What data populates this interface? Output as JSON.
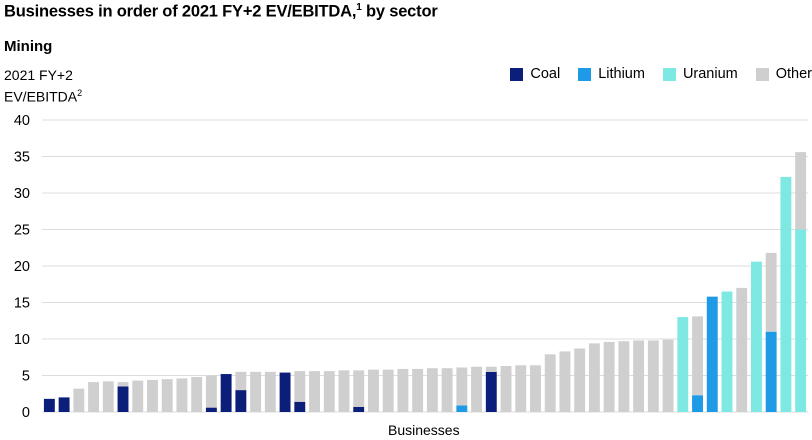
{
  "header": {
    "title": "Businesses in order of 2021 FY+2 EV/EBITDA,",
    "title_sup": "1",
    "title_suffix": " by sector",
    "subtitle": "Mining",
    "ylabel_line1": "2021 FY+2",
    "ylabel_line2": "EV/EBITDA",
    "ylabel_sup": "2"
  },
  "legend": [
    {
      "label": "Coal",
      "color": "#0b1f7a"
    },
    {
      "label": "Lithium",
      "color": "#1f9ae6"
    },
    {
      "label": "Uranium",
      "color": "#7ee8e3"
    },
    {
      "label": "Other",
      "color": "#cfcfcf"
    }
  ],
  "chart_data": {
    "type": "bar",
    "title": "Businesses in order of 2021 FY+2 EV/EBITDA, by sector",
    "subtitle": "Mining",
    "xlabel": "Businesses",
    "ylabel": "2021 FY+2 EV/EBITDA",
    "ylim": [
      0,
      40
    ],
    "yticks": [
      0,
      5,
      10,
      15,
      20,
      25,
      30,
      35,
      40
    ],
    "grid": true,
    "legend_position": "top-right",
    "stacked": true,
    "colors": {
      "Coal": "#0b1f7a",
      "Lithium": "#1f9ae6",
      "Uranium": "#7ee8e3",
      "Other": "#cfcfcf"
    },
    "bars": [
      {
        "segments": [
          {
            "sector": "Coal",
            "value": 1.8
          }
        ]
      },
      {
        "segments": [
          {
            "sector": "Coal",
            "value": 2.0
          }
        ]
      },
      {
        "segments": [
          {
            "sector": "Other",
            "value": 3.2
          }
        ]
      },
      {
        "segments": [
          {
            "sector": "Other",
            "value": 4.1
          }
        ]
      },
      {
        "segments": [
          {
            "sector": "Other",
            "value": 4.2
          }
        ]
      },
      {
        "segments": [
          {
            "sector": "Coal",
            "value": 3.5
          },
          {
            "sector": "Other",
            "value": 0.6
          }
        ]
      },
      {
        "segments": [
          {
            "sector": "Other",
            "value": 4.3
          }
        ]
      },
      {
        "segments": [
          {
            "sector": "Other",
            "value": 4.4
          }
        ]
      },
      {
        "segments": [
          {
            "sector": "Other",
            "value": 4.5
          }
        ]
      },
      {
        "segments": [
          {
            "sector": "Other",
            "value": 4.6
          }
        ]
      },
      {
        "segments": [
          {
            "sector": "Other",
            "value": 4.8
          }
        ]
      },
      {
        "segments": [
          {
            "sector": "Coal",
            "value": 0.6
          },
          {
            "sector": "Other",
            "value": 4.4
          }
        ]
      },
      {
        "segments": [
          {
            "sector": "Coal",
            "value": 5.2
          }
        ]
      },
      {
        "segments": [
          {
            "sector": "Coal",
            "value": 3.0
          },
          {
            "sector": "Other",
            "value": 2.5
          }
        ]
      },
      {
        "segments": [
          {
            "sector": "Other",
            "value": 5.5
          }
        ]
      },
      {
        "segments": [
          {
            "sector": "Other",
            "value": 5.5
          }
        ]
      },
      {
        "segments": [
          {
            "sector": "Coal",
            "value": 5.4
          }
        ]
      },
      {
        "segments": [
          {
            "sector": "Coal",
            "value": 1.4
          },
          {
            "sector": "Other",
            "value": 4.2
          }
        ]
      },
      {
        "segments": [
          {
            "sector": "Other",
            "value": 5.6
          }
        ]
      },
      {
        "segments": [
          {
            "sector": "Other",
            "value": 5.6
          }
        ]
      },
      {
        "segments": [
          {
            "sector": "Other",
            "value": 5.7
          }
        ]
      },
      {
        "segments": [
          {
            "sector": "Coal",
            "value": 0.7
          },
          {
            "sector": "Other",
            "value": 5.0
          }
        ]
      },
      {
        "segments": [
          {
            "sector": "Other",
            "value": 5.8
          }
        ]
      },
      {
        "segments": [
          {
            "sector": "Other",
            "value": 5.8
          }
        ]
      },
      {
        "segments": [
          {
            "sector": "Other",
            "value": 5.9
          }
        ]
      },
      {
        "segments": [
          {
            "sector": "Other",
            "value": 5.9
          }
        ]
      },
      {
        "segments": [
          {
            "sector": "Other",
            "value": 6.0
          }
        ]
      },
      {
        "segments": [
          {
            "sector": "Other",
            "value": 6.0
          }
        ]
      },
      {
        "segments": [
          {
            "sector": "Lithium",
            "value": 0.9
          },
          {
            "sector": "Other",
            "value": 5.2
          }
        ]
      },
      {
        "segments": [
          {
            "sector": "Other",
            "value": 6.2
          }
        ]
      },
      {
        "segments": [
          {
            "sector": "Coal",
            "value": 5.5
          },
          {
            "sector": "Other",
            "value": 0.7
          }
        ]
      },
      {
        "segments": [
          {
            "sector": "Other",
            "value": 6.3
          }
        ]
      },
      {
        "segments": [
          {
            "sector": "Other",
            "value": 6.4
          }
        ]
      },
      {
        "segments": [
          {
            "sector": "Other",
            "value": 6.4
          }
        ]
      },
      {
        "segments": [
          {
            "sector": "Other",
            "value": 7.9
          }
        ]
      },
      {
        "segments": [
          {
            "sector": "Other",
            "value": 8.3
          }
        ]
      },
      {
        "segments": [
          {
            "sector": "Other",
            "value": 8.7
          }
        ]
      },
      {
        "segments": [
          {
            "sector": "Other",
            "value": 9.4
          }
        ]
      },
      {
        "segments": [
          {
            "sector": "Other",
            "value": 9.6
          }
        ]
      },
      {
        "segments": [
          {
            "sector": "Other",
            "value": 9.7
          }
        ]
      },
      {
        "segments": [
          {
            "sector": "Other",
            "value": 9.8
          }
        ]
      },
      {
        "segments": [
          {
            "sector": "Other",
            "value": 9.8
          }
        ]
      },
      {
        "segments": [
          {
            "sector": "Other",
            "value": 9.9
          }
        ]
      },
      {
        "segments": [
          {
            "sector": "Uranium",
            "value": 13.0
          }
        ]
      },
      {
        "segments": [
          {
            "sector": "Lithium",
            "value": 2.3
          },
          {
            "sector": "Other",
            "value": 10.8
          }
        ]
      },
      {
        "segments": [
          {
            "sector": "Lithium",
            "value": 15.8
          }
        ]
      },
      {
        "segments": [
          {
            "sector": "Uranium",
            "value": 16.5
          }
        ]
      },
      {
        "segments": [
          {
            "sector": "Other",
            "value": 17.0
          }
        ]
      },
      {
        "segments": [
          {
            "sector": "Uranium",
            "value": 20.6
          }
        ]
      },
      {
        "segments": [
          {
            "sector": "Lithium",
            "value": 11.0
          },
          {
            "sector": "Other",
            "value": 10.8
          }
        ]
      },
      {
        "segments": [
          {
            "sector": "Uranium",
            "value": 32.2
          }
        ]
      },
      {
        "segments": [
          {
            "sector": "Uranium",
            "value": 25.0
          },
          {
            "sector": "Other",
            "value": 10.6
          }
        ]
      }
    ]
  }
}
